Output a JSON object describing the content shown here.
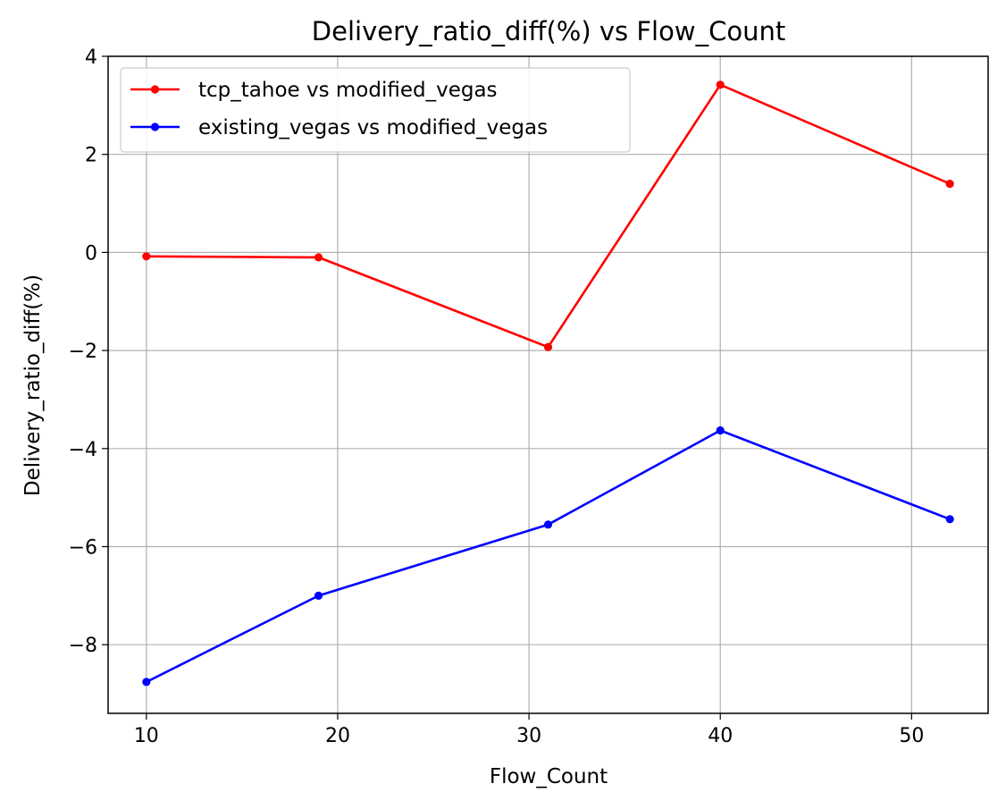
{
  "chart_data": {
    "type": "line",
    "title": "Delivery_ratio_diff(%) vs Flow_Count",
    "xlabel": "Flow_Count",
    "ylabel": "Delivery_ratio_diff(%)",
    "x": [
      10,
      19,
      31,
      40,
      52
    ],
    "xlim": [
      8,
      54
    ],
    "ylim": [
      -9.4,
      4.0
    ],
    "xticks": [
      10,
      20,
      30,
      40,
      50
    ],
    "yticks": [
      4,
      2,
      0,
      -2,
      -4,
      -6,
      -8
    ],
    "ytick_labels": [
      "4",
      "2",
      "0",
      "−2",
      "−4",
      "−6",
      "−8"
    ],
    "grid": true,
    "legend_position": "top-left",
    "series": [
      {
        "name": "tcp_tahoe vs modified_vegas",
        "color": "#ff0000",
        "values": [
          -0.08,
          -0.1,
          -1.93,
          3.42,
          1.4
        ]
      },
      {
        "name": "existing_vegas vs modified_vegas",
        "color": "#0000ff",
        "values": [
          -8.76,
          -7.0,
          -5.55,
          -3.63,
          -5.44
        ]
      }
    ]
  }
}
